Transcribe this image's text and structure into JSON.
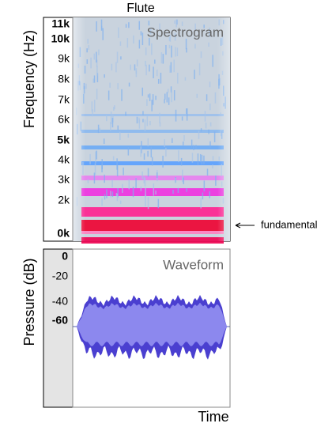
{
  "title": "Flute",
  "spectrogram": {
    "label": "Spectrogram",
    "axis_label": "Frequency (Hz)",
    "ticks": [
      "11k",
      "10k",
      "9k",
      "8k",
      "7k",
      "6k",
      "5k",
      "4k",
      "3k",
      "2k",
      "0k"
    ],
    "annotation": "fundamental"
  },
  "waveform": {
    "label": "Waveform",
    "axis_label": "Pressure (dB)",
    "ticks": [
      "0",
      "-20",
      "-40",
      "-60"
    ]
  },
  "x_axis_label": "Time"
}
